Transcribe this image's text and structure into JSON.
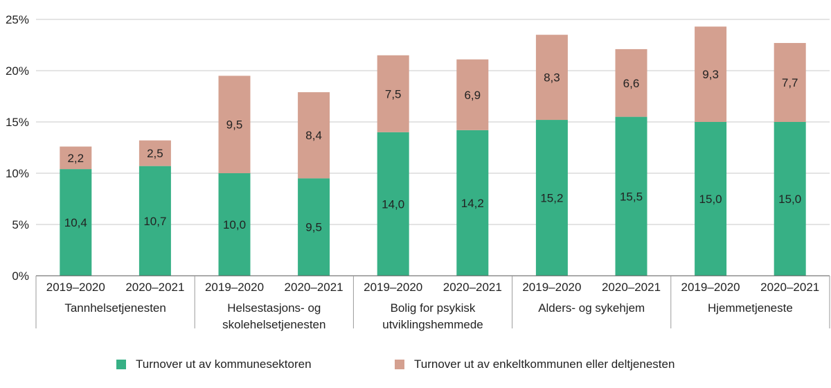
{
  "chart_data": {
    "type": "bar",
    "stacked": true,
    "y_ticks": [
      "0%",
      "5%",
      "10%",
      "15%",
      "20%",
      "25%"
    ],
    "ylim": [
      0,
      25
    ],
    "grid": true,
    "groups": [
      {
        "label": [
          "Tannhelsetjenesten"
        ],
        "categories": [
          "2019–2020",
          "2020–2021"
        ]
      },
      {
        "label": [
          "Helsestasjons- og",
          "skolehelsetjenesten"
        ],
        "categories": [
          "2019–2020",
          "2020–2021"
        ]
      },
      {
        "label": [
          "Bolig for psykisk",
          "utviklingshemmede"
        ],
        "categories": [
          "2019–2020",
          "2020–2021"
        ]
      },
      {
        "label": [
          "Alders- og sykehjem"
        ],
        "categories": [
          "2019–2020",
          "2020–2021"
        ]
      },
      {
        "label": [
          "Hjemmetjeneste"
        ],
        "categories": [
          "2019–2020",
          "2020–2021"
        ]
      }
    ],
    "series": [
      {
        "name": "Turnover ut av kommunesektoren",
        "color": "#37b085",
        "values": [
          10.4,
          10.7,
          10.0,
          9.5,
          14.0,
          14.2,
          15.2,
          15.5,
          15.0,
          15.0
        ],
        "labels": [
          "10,4",
          "10,7",
          "10,0",
          "9,5",
          "14,0",
          "14,2",
          "15,2",
          "15,5",
          "15,0",
          "15,0"
        ]
      },
      {
        "name": "Turnover ut av enkeltkommunen eller deltjenesten",
        "color": "#d4a090",
        "values": [
          2.2,
          2.5,
          9.5,
          8.4,
          7.5,
          6.9,
          8.3,
          6.6,
          9.3,
          7.7
        ],
        "labels": [
          "2,2",
          "2,5",
          "9,5",
          "8,4",
          "7,5",
          "6,9",
          "8,3",
          "6,6",
          "9,3",
          "7,7"
        ]
      }
    ],
    "legend_position": "bottom"
  }
}
